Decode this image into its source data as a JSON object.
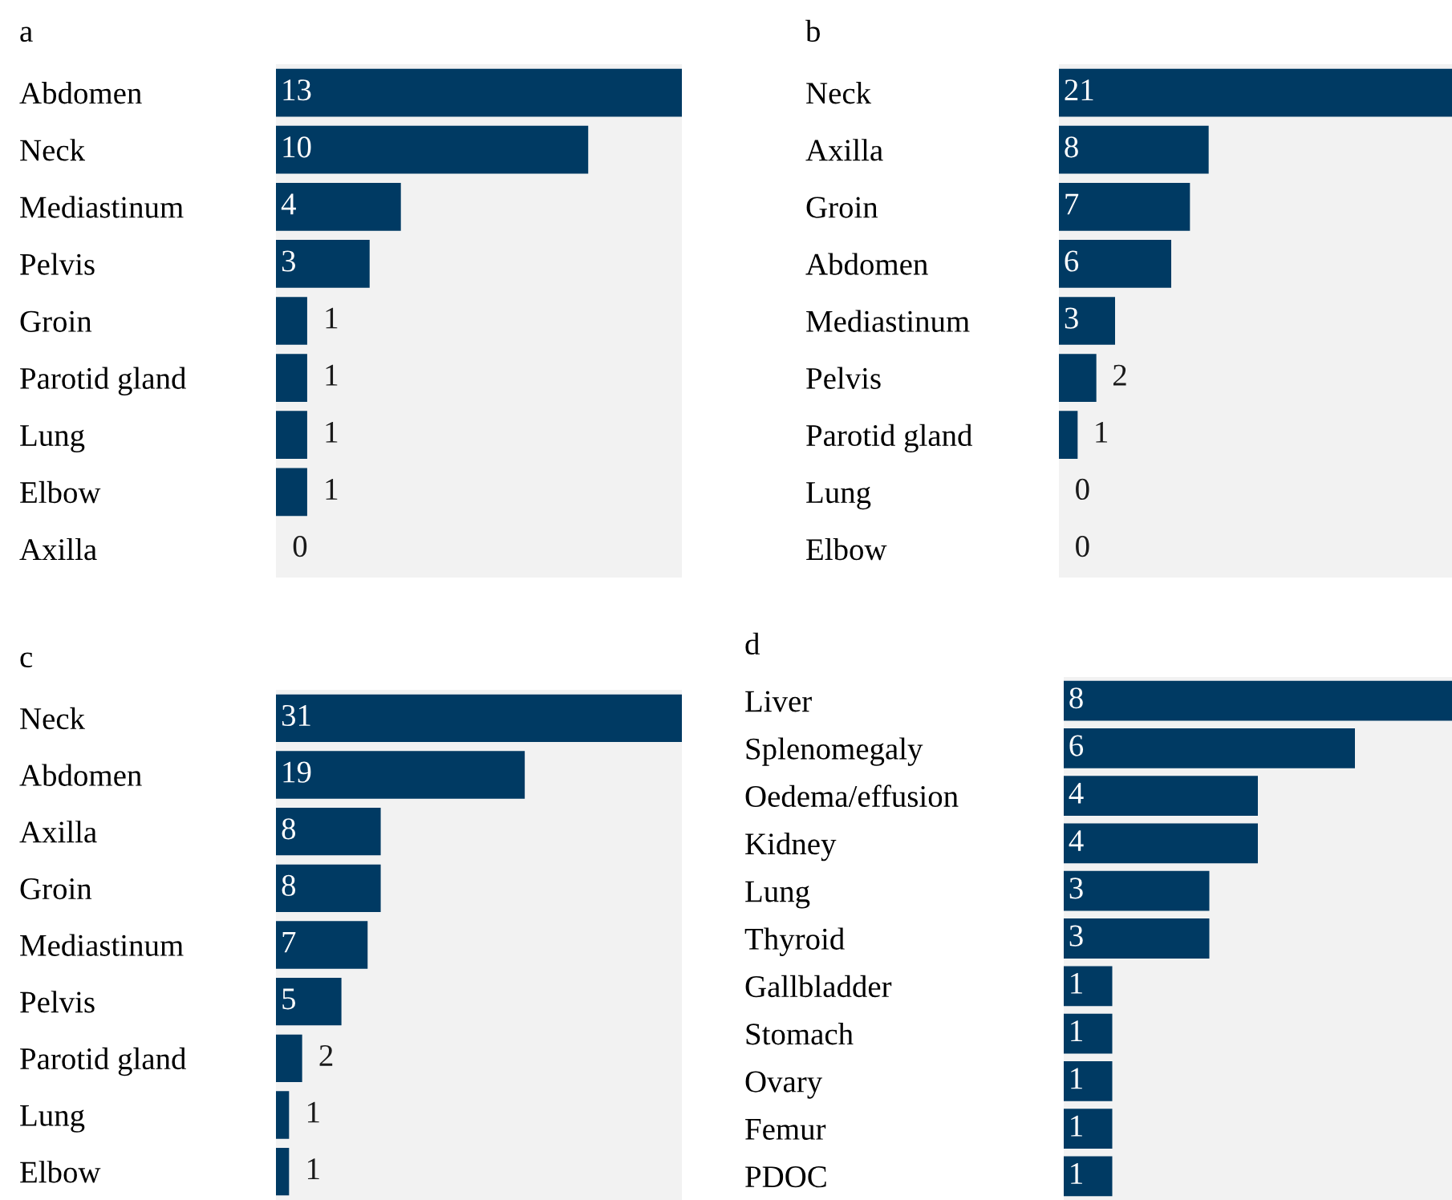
{
  "chart_data": [
    {
      "type": "bar",
      "orientation": "horizontal",
      "title": "a",
      "categories": [
        "Abdomen",
        "Neck",
        "Mediastinum",
        "Pelvis",
        "Groin",
        "Parotid gland",
        "Lung",
        "Elbow",
        "Axilla"
      ],
      "values": [
        13,
        10,
        4,
        3,
        1,
        1,
        1,
        1,
        0
      ],
      "color": "#003a63",
      "xlim": [
        0,
        13
      ],
      "bands": [
        {
          "axis": "x",
          "from": 0,
          "to": 13,
          "color": "#f2f2f2"
        }
      ],
      "tick_labels": "y",
      "data_labels": true,
      "grid": false,
      "legend": false
    },
    {
      "type": "bar",
      "orientation": "horizontal",
      "title": "b",
      "categories": [
        "Neck",
        "Axilla",
        "Groin",
        "Abdomen",
        "Mediastinum",
        "Pelvis",
        "Parotid gland",
        "Lung",
        "Elbow"
      ],
      "values": [
        21,
        8,
        7,
        6,
        3,
        2,
        1,
        0,
        0
      ],
      "color": "#003a63",
      "xlim": [
        0,
        21
      ],
      "bands": [
        {
          "axis": "x",
          "from": 0,
          "to": 21,
          "color": "#f2f2f2"
        }
      ],
      "tick_labels": "y",
      "data_labels": true,
      "grid": false,
      "legend": false
    },
    {
      "type": "bar",
      "orientation": "horizontal",
      "title": "c",
      "categories": [
        "Neck",
        "Abdomen",
        "Axilla",
        "Groin",
        "Mediastinum",
        "Pelvis",
        "Parotid gland",
        "Lung",
        "Elbow"
      ],
      "values": [
        31,
        19,
        8,
        8,
        7,
        5,
        2,
        1,
        1
      ],
      "color": "#003a63",
      "xlim": [
        0,
        31
      ],
      "bands": [
        {
          "axis": "x",
          "from": 0,
          "to": 31,
          "color": "#f2f2f2"
        }
      ],
      "tick_labels": "y",
      "data_labels": true,
      "grid": false,
      "legend": false
    },
    {
      "type": "bar",
      "orientation": "horizontal",
      "title": "d",
      "categories": [
        "Liver",
        "Splenomegaly",
        "Oedema/effusion",
        "Kidney",
        "Lung",
        "Thyroid",
        "Gallbladder",
        "Stomach",
        "Ovary",
        "Femur",
        "PDOC"
      ],
      "values": [
        8,
        6,
        4,
        4,
        3,
        3,
        1,
        1,
        1,
        1,
        1
      ],
      "color": "#003a63",
      "xlim": [
        0,
        8
      ],
      "bands": [
        {
          "axis": "x",
          "from": 0,
          "to": 8,
          "color": "#f2f2f2"
        }
      ],
      "tick_labels": "y",
      "data_labels": true,
      "grid": false,
      "legend": false
    }
  ]
}
